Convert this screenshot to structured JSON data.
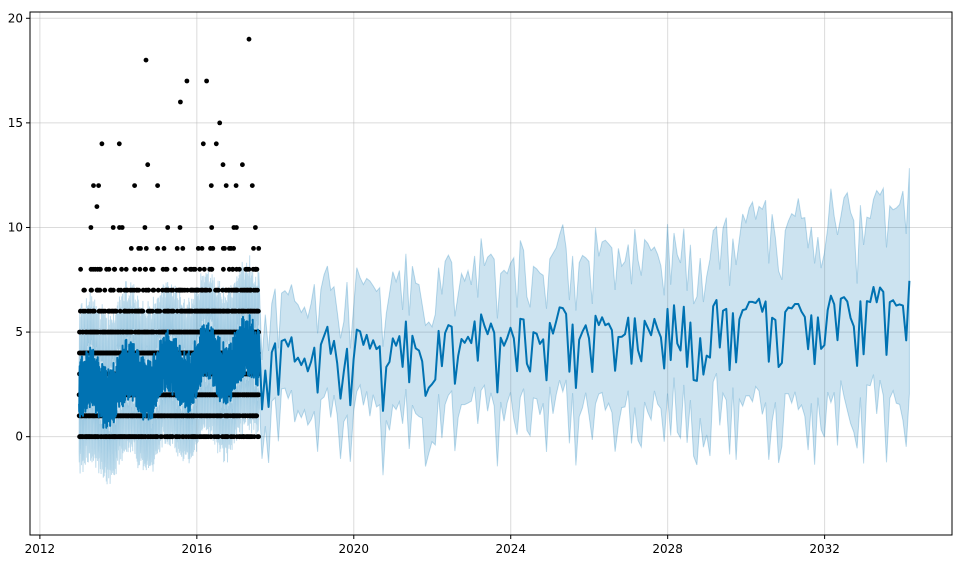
{
  "chart_data": {
    "type": "line",
    "title": "",
    "xlabel": "",
    "ylabel": "",
    "x_axis": "date",
    "xlim": [
      "2011-10-01",
      "2035-04-01"
    ],
    "ylim": [
      -4.7,
      20.3
    ],
    "x_ticks": [
      "2012",
      "2016",
      "2020",
      "2024",
      "2028",
      "2032"
    ],
    "y_ticks": [
      "0",
      "5",
      "10",
      "15",
      "20"
    ],
    "grid": true,
    "legend": "none",
    "history_range": [
      "2013-01-01",
      "2017-07-31"
    ],
    "forecast_range": [
      "2017-08-01",
      "2034-03-01"
    ],
    "observed": {
      "name": "",
      "marker": "dot",
      "color": "#000000",
      "recurring_levels": [
        0,
        1,
        2,
        3,
        4,
        5,
        6,
        7,
        8,
        9,
        10
      ],
      "outliers": [
        {
          "x": "2013-05-15",
          "y": 12
        },
        {
          "x": "2013-08-01",
          "y": 14
        },
        {
          "x": "2013-07-01",
          "y": 12
        },
        {
          "x": "2013-06-15",
          "y": 11
        },
        {
          "x": "2014-01-10",
          "y": 14
        },
        {
          "x": "2014-06-01",
          "y": 12
        },
        {
          "x": "2014-09-15",
          "y": 18
        },
        {
          "x": "2014-10-01",
          "y": 13
        },
        {
          "x": "2015-01-01",
          "y": 12
        },
        {
          "x": "2015-08-01",
          "y": 16
        },
        {
          "x": "2015-10-01",
          "y": 17
        },
        {
          "x": "2016-03-01",
          "y": 14
        },
        {
          "x": "2016-04-01",
          "y": 17
        },
        {
          "x": "2016-05-15",
          "y": 12
        },
        {
          "x": "2016-07-01",
          "y": 14
        },
        {
          "x": "2016-08-01",
          "y": 15
        },
        {
          "x": "2016-09-01",
          "y": 13
        },
        {
          "x": "2016-10-01",
          "y": 12
        },
        {
          "x": "2017-01-01",
          "y": 12
        },
        {
          "x": "2017-03-01",
          "y": 13
        },
        {
          "x": "2017-05-01",
          "y": 19
        },
        {
          "x": "2017-06-01",
          "y": 12
        }
      ]
    },
    "series": [
      {
        "name": "",
        "kind": "forecast",
        "color": "#0072B2",
        "trend_start": 2.1,
        "trend_at_history_end": 3.9,
        "trend_end": 6.6,
        "weekly_amplitude": 1.2,
        "yearly_amplitude": 0.6
      },
      {
        "name": "",
        "kind": "uncertainty_interval",
        "color": "#0072B2",
        "opacity": 0.2,
        "width_at_history": 2.5,
        "width_at_end": 4.8
      }
    ]
  }
}
